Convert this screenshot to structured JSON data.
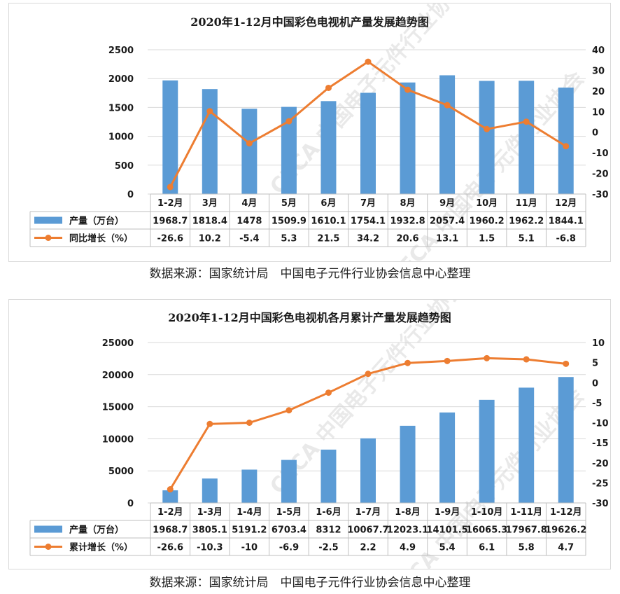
{
  "source_text": "数据来源：国家统计局　中国电子元件行业协会信息中心整理",
  "watermark": "CECA 中国电子元件行业协会",
  "colors": {
    "bar": "#5b9bd5",
    "line": "#ed7d31",
    "grid": "#d9d9d9",
    "table_border": "#bfbfbf"
  },
  "chart_data": [
    {
      "type": "bar",
      "title": "2020年1-12月中国彩色电视机产量发展趋势图",
      "categories": [
        "1-2月",
        "3月",
        "4月",
        "5月",
        "6月",
        "7月",
        "8月",
        "9月",
        "10月",
        "11月",
        "12月"
      ],
      "series": [
        {
          "name": "产量（万台）",
          "type": "bar",
          "axis": "left",
          "values": [
            1968.7,
            1818.4,
            1478,
            1509.9,
            1610.1,
            1754.1,
            1932.8,
            2057.4,
            1960.2,
            1962.2,
            1844.1
          ],
          "labels": [
            "1968.7",
            "1818.4",
            "1478",
            "1509.9",
            "1610.1",
            "1754.1",
            "1932.8",
            "2057.4",
            "1960.2",
            "1962.2",
            "1844.1"
          ]
        },
        {
          "name": "同比增长（%）",
          "type": "line",
          "axis": "right",
          "values": [
            -26.6,
            10.2,
            -5.4,
            5.3,
            21.5,
            34.2,
            20.6,
            13.1,
            1.5,
            5.1,
            -6.8
          ],
          "labels": [
            "-26.6",
            "10.2",
            "-5.4",
            "5.3",
            "21.5",
            "34.2",
            "20.6",
            "13.1",
            "1.5",
            "5.1",
            "-6.8"
          ]
        }
      ],
      "y_left": {
        "min": 0,
        "max": 2500,
        "ticks": [
          "0",
          "500",
          "1000",
          "1500",
          "2000",
          "2500"
        ]
      },
      "y_right": {
        "min": -30,
        "max": 40,
        "ticks": [
          "-30",
          "-20",
          "-10",
          "0",
          "10",
          "20",
          "30",
          "40"
        ]
      },
      "grid": true,
      "legend": "data-table"
    },
    {
      "type": "bar",
      "title": "2020年1-12月中国彩色电视机各月累计产量发展趋势图",
      "categories": [
        "1-2月",
        "1-3月",
        "1-4月",
        "1-5月",
        "1-6月",
        "1-7月",
        "1-8月",
        "1-9月",
        "1-10月",
        "1-11月",
        "1-12月"
      ],
      "series": [
        {
          "name": "产量（万台）",
          "type": "bar",
          "axis": "left",
          "values": [
            1968.7,
            3805.1,
            5191.2,
            6703.4,
            8312,
            10067.7,
            12023.1,
            14101.5,
            16065.3,
            17967.8,
            19626.2
          ],
          "labels": [
            "1968.7",
            "3805.1",
            "5191.2",
            "6703.4",
            "8312",
            "10067.7",
            "12023.1",
            "14101.5",
            "16065.3",
            "17967.8",
            "19626.2"
          ]
        },
        {
          "name": "累计增长（%）",
          "type": "line",
          "axis": "right",
          "values": [
            -26.6,
            -10.3,
            -10,
            -6.9,
            -2.5,
            2.2,
            4.9,
            5.4,
            6.1,
            5.8,
            4.7
          ],
          "labels": [
            "-26.6",
            "-10.3",
            "-10",
            "-6.9",
            "-2.5",
            "2.2",
            "4.9",
            "5.4",
            "6.1",
            "5.8",
            "4.7"
          ]
        }
      ],
      "y_left": {
        "min": 0,
        "max": 25000,
        "ticks": [
          "0",
          "5000",
          "10000",
          "15000",
          "20000",
          "25000"
        ]
      },
      "y_right": {
        "min": -30,
        "max": 10,
        "ticks": [
          "-30",
          "-25",
          "-20",
          "-15",
          "-10",
          "-5",
          "0",
          "5",
          "10"
        ]
      },
      "grid": true,
      "legend": "data-table"
    }
  ]
}
